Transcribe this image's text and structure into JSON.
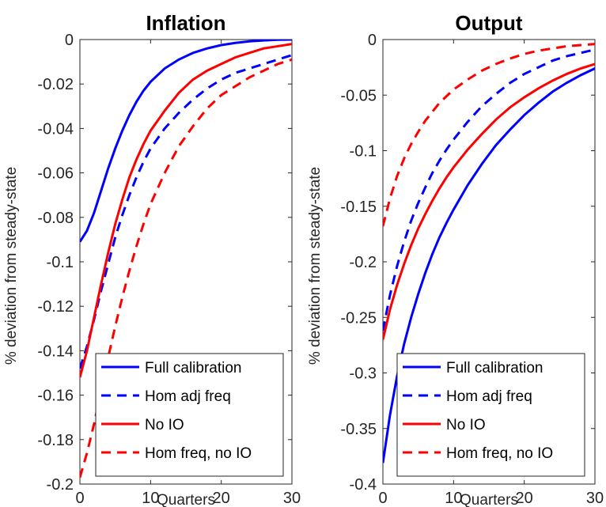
{
  "chart_data": [
    {
      "type": "line",
      "title": "Inflation",
      "xlabel": "Quarters",
      "ylabel": "% deviation from steady-state",
      "xlim": [
        0,
        30
      ],
      "ylim": [
        -0.2,
        0
      ],
      "xticks": [
        "0",
        "10",
        "20",
        "30"
      ],
      "yticks": [
        "0",
        "-0.02",
        "-0.04",
        "-0.06",
        "-0.08",
        "-0.1",
        "-0.12",
        "-0.14",
        "-0.16",
        "-0.18",
        "-0.2"
      ],
      "legend_position": "bottom-right",
      "grid": false,
      "x": [
        0,
        1,
        2,
        3,
        4,
        5,
        6,
        7,
        8,
        9,
        10,
        12,
        14,
        16,
        18,
        20,
        22,
        24,
        26,
        28,
        30
      ],
      "series": [
        {
          "name": "Full calibration",
          "color": "#0000ff",
          "dash": "solid",
          "values": [
            -0.091,
            -0.086,
            -0.078,
            -0.068,
            -0.058,
            -0.049,
            -0.041,
            -0.034,
            -0.028,
            -0.023,
            -0.019,
            -0.013,
            -0.009,
            -0.006,
            -0.004,
            -0.0025,
            -0.0015,
            -0.0008,
            -0.0004,
            -0.0001,
            0.0
          ]
        },
        {
          "name": "Hom adj freq",
          "color": "#0000ff",
          "dash": "dashed",
          "values": [
            -0.148,
            -0.138,
            -0.126,
            -0.113,
            -0.101,
            -0.089,
            -0.079,
            -0.07,
            -0.062,
            -0.055,
            -0.049,
            -0.04,
            -0.033,
            -0.027,
            -0.022,
            -0.018,
            -0.015,
            -0.013,
            -0.011,
            -0.009,
            -0.007
          ]
        },
        {
          "name": "No IO",
          "color": "#ff0000",
          "dash": "solid",
          "values": [
            -0.152,
            -0.14,
            -0.125,
            -0.11,
            -0.096,
            -0.083,
            -0.072,
            -0.062,
            -0.054,
            -0.047,
            -0.041,
            -0.032,
            -0.024,
            -0.018,
            -0.014,
            -0.011,
            -0.008,
            -0.006,
            -0.004,
            -0.003,
            -0.002
          ]
        },
        {
          "name": "Hom freq, no IO",
          "color": "#ff0000",
          "dash": "dashed",
          "values": [
            -0.197,
            -0.186,
            -0.173,
            -0.158,
            -0.143,
            -0.129,
            -0.116,
            -0.104,
            -0.093,
            -0.083,
            -0.074,
            -0.06,
            -0.048,
            -0.039,
            -0.031,
            -0.025,
            -0.021,
            -0.017,
            -0.014,
            -0.011,
            -0.009
          ]
        }
      ]
    },
    {
      "type": "line",
      "title": "Output",
      "xlabel": "Quarters",
      "ylabel": "% deviation from steady-state",
      "xlim": [
        0,
        30
      ],
      "ylim": [
        -0.4,
        0
      ],
      "xticks": [
        "0",
        "10",
        "20",
        "30"
      ],
      "yticks": [
        "0",
        "-0.05",
        "-0.1",
        "-0.15",
        "-0.2",
        "-0.25",
        "-0.3",
        "-0.35",
        "-0.4"
      ],
      "legend_position": "bottom-right",
      "grid": false,
      "x": [
        0,
        1,
        2,
        3,
        4,
        5,
        6,
        7,
        8,
        9,
        10,
        12,
        14,
        16,
        18,
        20,
        22,
        24,
        26,
        28,
        30
      ],
      "series": [
        {
          "name": "Full calibration",
          "color": "#0000ff",
          "dash": "solid",
          "values": [
            -0.381,
            -0.338,
            -0.303,
            -0.274,
            -0.25,
            -0.229,
            -0.21,
            -0.193,
            -0.178,
            -0.165,
            -0.153,
            -0.131,
            -0.112,
            -0.095,
            -0.081,
            -0.068,
            -0.057,
            -0.047,
            -0.039,
            -0.032,
            -0.026
          ]
        },
        {
          "name": "Hom adj freq",
          "color": "#0000ff",
          "dash": "dashed",
          "values": [
            -0.262,
            -0.23,
            -0.204,
            -0.182,
            -0.163,
            -0.147,
            -0.133,
            -0.12,
            -0.109,
            -0.099,
            -0.09,
            -0.074,
            -0.06,
            -0.049,
            -0.039,
            -0.031,
            -0.025,
            -0.019,
            -0.015,
            -0.012,
            -0.009
          ]
        },
        {
          "name": "No IO",
          "color": "#ff0000",
          "dash": "solid",
          "values": [
            -0.27,
            -0.243,
            -0.221,
            -0.202,
            -0.185,
            -0.17,
            -0.157,
            -0.145,
            -0.134,
            -0.124,
            -0.115,
            -0.099,
            -0.085,
            -0.072,
            -0.061,
            -0.052,
            -0.044,
            -0.037,
            -0.031,
            -0.026,
            -0.022
          ]
        },
        {
          "name": "Hom freq, no IO",
          "color": "#ff0000",
          "dash": "dashed",
          "values": [
            -0.168,
            -0.143,
            -0.123,
            -0.107,
            -0.094,
            -0.083,
            -0.073,
            -0.065,
            -0.057,
            -0.051,
            -0.045,
            -0.036,
            -0.028,
            -0.022,
            -0.017,
            -0.013,
            -0.01,
            -0.008,
            -0.006,
            -0.005,
            -0.004
          ]
        }
      ]
    }
  ]
}
